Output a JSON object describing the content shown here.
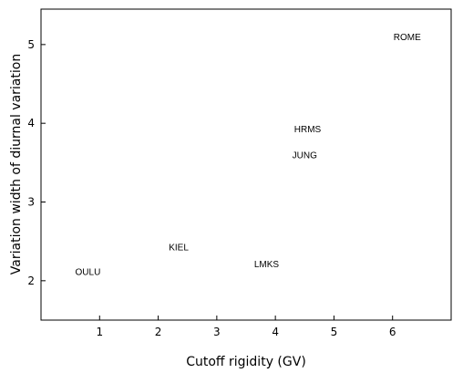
{
  "chart_data": {
    "type": "scatter",
    "xlabel": "Cutoff rigidity (GV)",
    "ylabel": "Variation width of diurnal variation",
    "xlim": [
      0,
      7
    ],
    "ylim": [
      1.5,
      5.45
    ],
    "xticks": [
      1,
      2,
      3,
      4,
      5,
      6
    ],
    "yticks": [
      2,
      3,
      4,
      5
    ],
    "grid": false,
    "points": [
      {
        "label": "OULU",
        "x": 0.8,
        "y": 2.12
      },
      {
        "label": "KIEL",
        "x": 2.35,
        "y": 2.43
      },
      {
        "label": "LMKS",
        "x": 3.85,
        "y": 2.22
      },
      {
        "label": "JUNG",
        "x": 4.5,
        "y": 3.6
      },
      {
        "label": "HRMS",
        "x": 4.55,
        "y": 3.93
      },
      {
        "label": "ROME",
        "x": 6.25,
        "y": 5.1
      }
    ]
  }
}
